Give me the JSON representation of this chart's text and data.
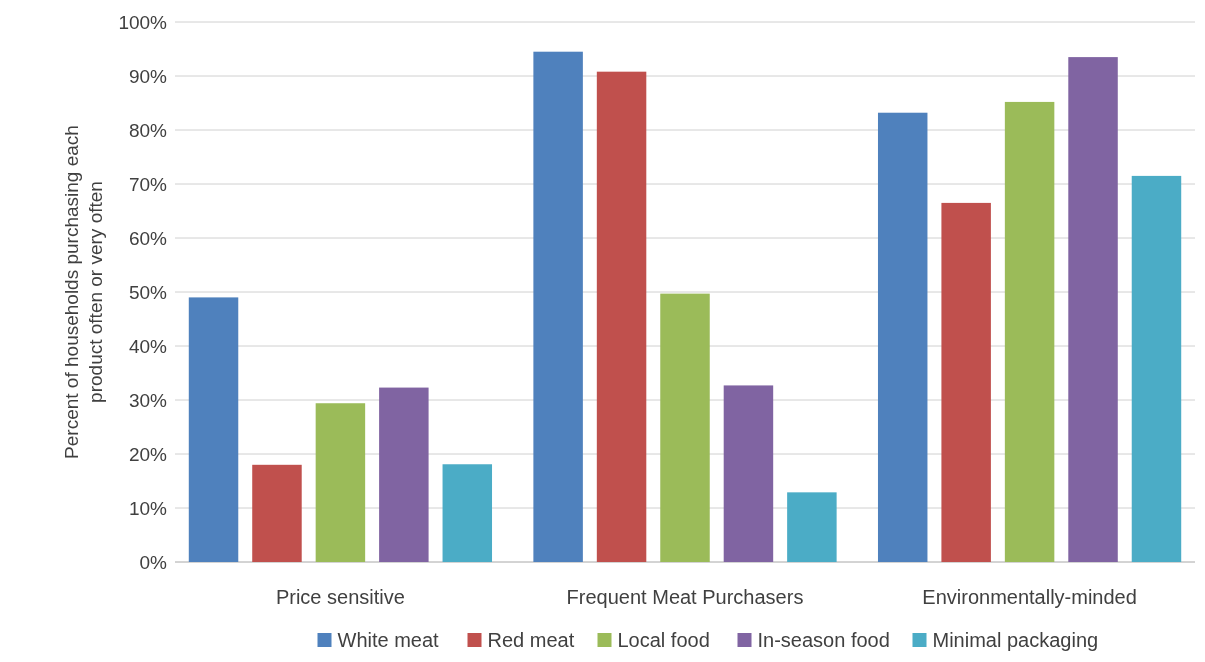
{
  "chart_data": {
    "type": "bar",
    "ylabel": "Percent of households purchasing each product often or very often",
    "categories": [
      "Price sensitive",
      "Frequent Meat Purchasers",
      "Environmentally-minded"
    ],
    "series": [
      {
        "name": "White meat",
        "color": "#4f81bd",
        "values": [
          49,
          94.5,
          83.2
        ]
      },
      {
        "name": "Red meat",
        "color": "#c0504d",
        "values": [
          18,
          90.8,
          66.5
        ]
      },
      {
        "name": "Local food",
        "color": "#9bbb59",
        "values": [
          29.4,
          49.7,
          85.2
        ]
      },
      {
        "name": "In-season food",
        "color": "#8064a2",
        "values": [
          32.3,
          32.7,
          93.5
        ]
      },
      {
        "name": "Minimal packaging",
        "color": "#4bacc6",
        "values": [
          18.1,
          12.9,
          71.5
        ]
      }
    ],
    "ylim": [
      0,
      100
    ],
    "yticks": [
      {
        "value": 0,
        "label": "0%"
      },
      {
        "value": 10,
        "label": "10%"
      },
      {
        "value": 20,
        "label": "20%"
      },
      {
        "value": 30,
        "label": "30%"
      },
      {
        "value": 40,
        "label": "40%"
      },
      {
        "value": 50,
        "label": "50%"
      },
      {
        "value": 60,
        "label": "60%"
      },
      {
        "value": 70,
        "label": "70%"
      },
      {
        "value": 80,
        "label": "80%"
      },
      {
        "value": 90,
        "label": "90%"
      },
      {
        "value": 100,
        "label": "100%"
      }
    ],
    "grid": "y",
    "legend": "bottom"
  }
}
